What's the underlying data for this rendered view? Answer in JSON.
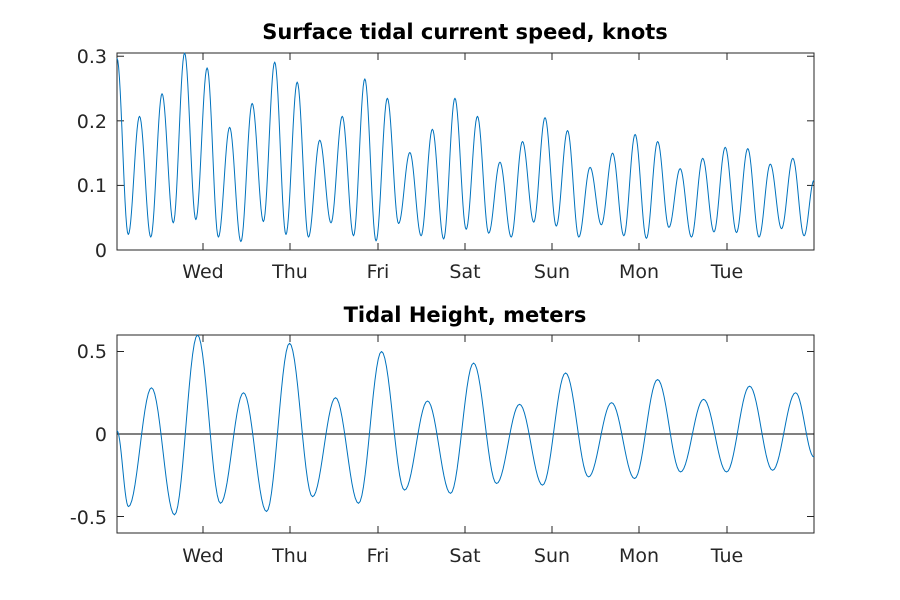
{
  "chart_data": [
    {
      "type": "line",
      "title": "Surface tidal current speed, knots",
      "xlabel": "",
      "ylabel": "",
      "x_ticks": [
        "Wed",
        "Thu",
        "Fri",
        "Sat",
        "Sun",
        "Mon",
        "Tue"
      ],
      "y_ticks": [
        "0",
        "0.1",
        "0.2",
        "0.3"
      ],
      "ylim": [
        0,
        0.305
      ],
      "grid": false,
      "color": "#0072BD",
      "series": [
        {
          "peaks": [
            0.297,
            0.207,
            0.242,
            0.305,
            0.282,
            0.19,
            0.227,
            0.291,
            0.26,
            0.17,
            0.207,
            0.265,
            0.235,
            0.151,
            0.187,
            0.235,
            0.207,
            0.136,
            0.168,
            0.205,
            0.185,
            0.128,
            0.15,
            0.179,
            0.168,
            0.126,
            0.142,
            0.159,
            0.157,
            0.133,
            0.142
          ],
          "troughs": [
            0.024,
            0.02,
            0.042,
            0.047,
            0.02,
            0.013,
            0.044,
            0.024,
            0.02,
            0.042,
            0.022,
            0.014,
            0.041,
            0.022,
            0.017,
            0.032,
            0.026,
            0.02,
            0.043,
            0.037,
            0.02,
            0.039,
            0.022,
            0.018,
            0.035,
            0.02,
            0.028,
            0.027,
            0.02,
            0.033,
            0.022
          ],
          "end_value": 0.108
        }
      ]
    },
    {
      "type": "line",
      "title": "Tidal Height, meters",
      "xlabel": "",
      "ylabel": "",
      "x_ticks": [
        "Wed",
        "Thu",
        "Fri",
        "Sat",
        "Sun",
        "Mon",
        "Tue"
      ],
      "y_ticks": [
        "-0.5",
        "0",
        "0.5"
      ],
      "ylim": [
        -0.6,
        0.6
      ],
      "grid": false,
      "reference_line": 0,
      "color": "#0072BD",
      "series": [
        {
          "start_value": 0.02,
          "minima": [
            -0.44,
            -0.49,
            -0.42,
            -0.47,
            -0.38,
            -0.42,
            -0.34,
            -0.36,
            -0.3,
            -0.31,
            -0.26,
            -0.27,
            -0.23,
            -0.23,
            -0.22
          ],
          "maxima": [
            0.28,
            0.6,
            0.25,
            0.55,
            0.22,
            0.5,
            0.2,
            0.43,
            0.18,
            0.37,
            0.19,
            0.33,
            0.21,
            0.29,
            0.25
          ],
          "end_value": -0.14
        }
      ]
    }
  ]
}
